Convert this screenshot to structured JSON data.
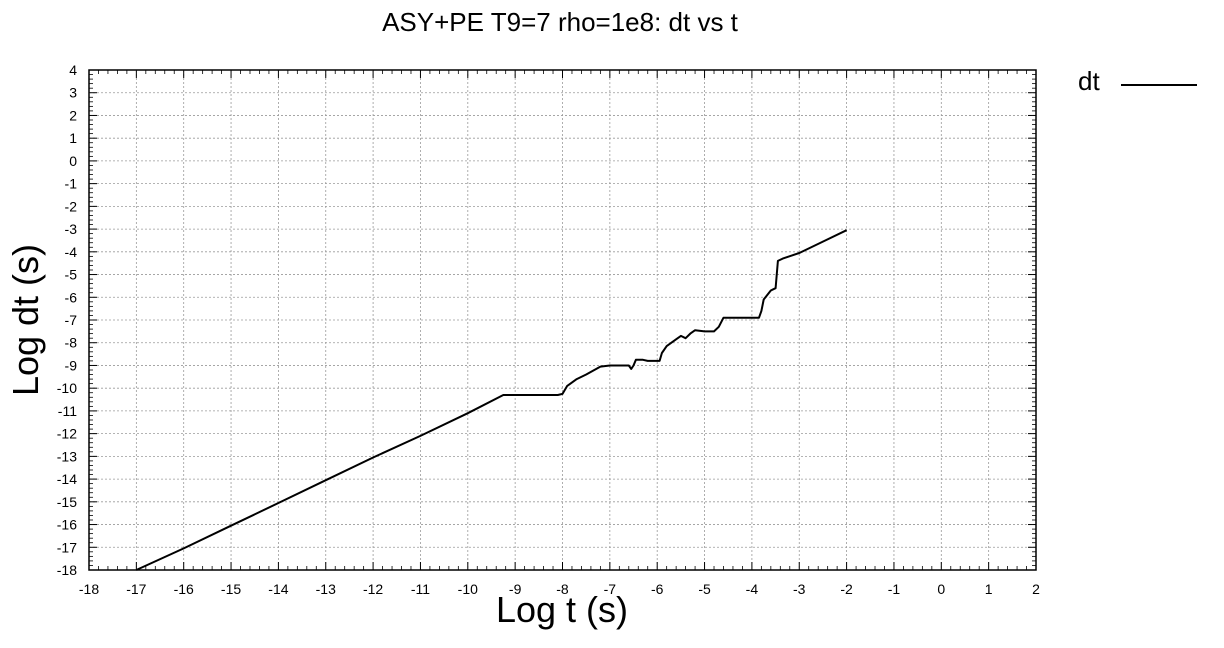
{
  "chart_data": {
    "type": "line",
    "title": "ASY+PE T9=7 rho=1e8: dt vs t",
    "xlabel": "Log t (s)",
    "ylabel": "Log dt (s)",
    "xlim": [
      -18,
      2
    ],
    "ylim": [
      -18,
      4
    ],
    "x_ticks": [
      -18,
      -17,
      -16,
      -15,
      -14,
      -13,
      -12,
      -11,
      -10,
      -9,
      -8,
      -7,
      -6,
      -5,
      -4,
      -3,
      -2,
      -1,
      0,
      1,
      2
    ],
    "y_ticks": [
      4,
      3,
      2,
      1,
      0,
      -1,
      -2,
      -3,
      -4,
      -5,
      -6,
      -7,
      -8,
      -9,
      -10,
      -11,
      -12,
      -13,
      -14,
      -15,
      -16,
      -17,
      -18
    ],
    "grid": true,
    "legend_position": "top-right",
    "series": [
      {
        "name": "dt",
        "color": "#000000",
        "x": [
          -17.0,
          -16.0,
          -15.0,
          -14.0,
          -13.0,
          -12.0,
          -11.0,
          -10.0,
          -9.25,
          -9.0,
          -8.5,
          -8.1,
          -8.0,
          -7.9,
          -7.7,
          -7.5,
          -7.2,
          -7.0,
          -6.8,
          -6.6,
          -6.55,
          -6.5,
          -6.45,
          -6.3,
          -6.2,
          -5.95,
          -5.9,
          -5.8,
          -5.7,
          -5.6,
          -5.5,
          -5.4,
          -5.3,
          -5.2,
          -5.0,
          -4.8,
          -4.7,
          -4.6,
          -4.2,
          -3.85,
          -3.8,
          -3.75,
          -3.6,
          -3.55,
          -3.5,
          -3.45,
          -3.35,
          -3.0,
          -2.5,
          -2.0
        ],
        "values": [
          -18.0,
          -17.05,
          -16.05,
          -15.05,
          -14.05,
          -13.05,
          -12.1,
          -11.1,
          -10.3,
          -10.3,
          -10.3,
          -10.3,
          -10.25,
          -9.9,
          -9.6,
          -9.4,
          -9.05,
          -9.0,
          -9.0,
          -9.0,
          -9.15,
          -9.0,
          -8.75,
          -8.75,
          -8.8,
          -8.8,
          -8.45,
          -8.15,
          -8.0,
          -7.85,
          -7.7,
          -7.8,
          -7.6,
          -7.45,
          -7.5,
          -7.5,
          -7.3,
          -6.9,
          -6.9,
          -6.9,
          -6.6,
          -6.1,
          -5.7,
          -5.65,
          -5.6,
          -4.4,
          -4.3,
          -4.05,
          -3.55,
          -3.05
        ]
      }
    ]
  }
}
